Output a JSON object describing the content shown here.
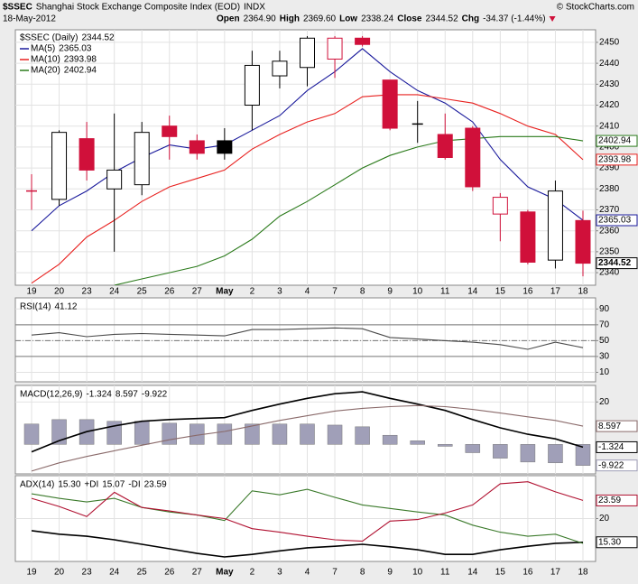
{
  "chart_data": [
    {
      "type": "candlestick",
      "symbol": "$SSEC",
      "title": "Shanghai Stock Exchange Composite Index (EOD)",
      "exchange": "INDX",
      "date": "18-May-2012",
      "credit": "© StockCharts.com",
      "quote": [
        {
          "label": "Open",
          "value": "2364.90"
        },
        {
          "label": "High",
          "value": "2369.60"
        },
        {
          "label": "Low",
          "value": "2338.24"
        },
        {
          "label": "Close",
          "value": "2344.52"
        },
        {
          "label": "Chg",
          "value": "-34.37 (-1.44%)"
        }
      ],
      "legend_name": "$SSEC (Daily)",
      "categories": [
        "19",
        "20",
        "23",
        "24",
        "25",
        "26",
        "27",
        "May",
        "2",
        "3",
        "4",
        "7",
        "8",
        "9",
        "10",
        "11",
        "14",
        "15",
        "16",
        "17",
        "18"
      ],
      "open": [
        2379,
        2375,
        2404,
        2380,
        2382,
        2410,
        2403,
        2403,
        2420,
        2434,
        2438,
        2442,
        2452,
        2432,
        2411,
        2406,
        2409,
        2368,
        2369,
        2346,
        2364.9
      ],
      "high": [
        2387,
        2408,
        2412,
        2416,
        2412,
        2415,
        2406,
        2409,
        2446,
        2446,
        2453,
        2453,
        2453,
        2432,
        2422,
        2416,
        2410,
        2378,
        2370,
        2384,
        2369.6
      ],
      "low": [
        2370,
        2372,
        2384,
        2350,
        2377,
        2394,
        2394,
        2394,
        2408,
        2428,
        2429,
        2433,
        2448,
        2408,
        2402,
        2394,
        2379,
        2355,
        2344,
        2342,
        2338.24
      ],
      "close": [
        2379,
        2407,
        2389,
        2389,
        2407,
        2405,
        2397,
        2397,
        2439,
        2441,
        2452,
        2452,
        2449,
        2409,
        2411,
        2395,
        2381,
        2376,
        2345,
        2379,
        2344.52
      ],
      "colors": [
        "#d0103a",
        "#000000",
        "#d0103a",
        "#000000",
        "#000000",
        "#d0103a",
        "#d0103a",
        "#000000",
        "#000000",
        "#000000",
        "#000000",
        "#d0103a",
        "#d0103a",
        "#d0103a",
        "#000000",
        "#d0103a",
        "#d0103a",
        "#d0103a",
        "#d0103a",
        "#000000",
        "#d0103a"
      ],
      "ylim": [
        2334,
        2456
      ],
      "yticks": [
        2340,
        2350,
        2360,
        2370,
        2380,
        2390,
        2400,
        2410,
        2420,
        2430,
        2440,
        2450
      ],
      "grid": true,
      "series": [
        {
          "name": "MA(5)",
          "type": "line",
          "color": "#1a1a9c",
          "end_label": true,
          "values": [
            2360,
            2372,
            2379,
            2388,
            2395,
            2401,
            2399,
            2401,
            2408,
            2415,
            2427,
            2436,
            2447,
            2436,
            2427,
            2421,
            2412,
            2394,
            2381,
            2375,
            2365.03
          ]
        },
        {
          "name": "MA(10)",
          "type": "line",
          "color": "#e8211f",
          "end_label": true,
          "values": [
            2335,
            2344,
            2357,
            2365,
            2374,
            2381,
            2385,
            2389,
            2399,
            2406,
            2412,
            2416,
            2424,
            2425,
            2425,
            2423,
            2421,
            2416,
            2410,
            2406,
            2393.98
          ]
        },
        {
          "name": "MA(20)",
          "type": "line",
          "color": "#2a7a1a",
          "end_label": true,
          "values": [
            null,
            null,
            null,
            2334,
            2337,
            2340,
            2343,
            2348,
            2356,
            2367,
            2374,
            2382,
            2390,
            2396,
            2400,
            2403,
            2404,
            2405,
            2405,
            2405,
            2402.94
          ]
        }
      ]
    },
    {
      "type": "line",
      "ylim": [
        -2,
        104
      ],
      "yticks": [
        10,
        30,
        50,
        70,
        90
      ],
      "ref_lines": [
        30,
        50,
        70
      ],
      "grid": true,
      "series": [
        {
          "name": "RSI(14)",
          "type": "line",
          "color": "#4a4a4a",
          "values": [
            57,
            60,
            55,
            58,
            59,
            58,
            57,
            56,
            64,
            64,
            65,
            66,
            65,
            54,
            52,
            50,
            48,
            45,
            39,
            48,
            41.12
          ]
        }
      ]
    },
    {
      "type": "combo",
      "ylim": [
        -13.9,
        27.8
      ],
      "yticks": [
        20
      ],
      "grid": true,
      "series": [
        {
          "name": "MACD(12,26,9)",
          "type": "line",
          "color": "#000000",
          "end_label": true,
          "values": [
            -3.5,
            1.7,
            6,
            8.7,
            10.9,
            11.7,
            12.2,
            12.6,
            16,
            19,
            21.7,
            23.9,
            24.8,
            21.7,
            19,
            16,
            11.7,
            7.8,
            4.8,
            2.6,
            -1.324
          ]
        },
        {
          "type": "line",
          "color": "#8a6a6a",
          "end_label": true,
          "values": [
            -12.6,
            -8.7,
            -5.7,
            -3,
            -0.4,
            2.2,
            4.3,
            6.1,
            8.7,
            11.3,
            13.5,
            15.7,
            17,
            17.8,
            18.3,
            17.8,
            16.5,
            14.8,
            13,
            11.3,
            8.597
          ]
        },
        {
          "type": "bar",
          "color": "#a09fb8",
          "end_label": true,
          "values": [
            9.6,
            11.7,
            11.7,
            10.9,
            10.9,
            10,
            9.6,
            9.6,
            9.6,
            9.6,
            9.6,
            9.1,
            8.3,
            4.3,
            1.7,
            -0.9,
            -3.9,
            -6.5,
            -8.3,
            -8.7,
            -9.922
          ]
        }
      ]
    },
    {
      "type": "line",
      "ylim": [
        11.5,
        28.5
      ],
      "yticks": [
        20
      ],
      "grid": true,
      "series": [
        {
          "name": "ADX(14)",
          "type": "line",
          "color": "#000000",
          "end_label": true,
          "values": [
            17.6,
            16.9,
            16.5,
            15.8,
            14.9,
            14,
            13.1,
            12.4,
            12.9,
            13.6,
            14.2,
            14.5,
            14.9,
            14.4,
            13.8,
            12.9,
            12.9,
            13.8,
            14.5,
            15.1,
            15.3
          ],
          "value_labels": [
            null,
            null,
            null,
            null,
            null,
            null,
            null,
            null,
            null,
            null,
            null,
            null,
            null,
            null,
            null,
            null,
            null,
            null,
            null,
            null,
            "15.30"
          ]
        },
        {
          "name": "+DI",
          "type": "line",
          "color": "#3b7a2b",
          "values": [
            24.9,
            24,
            23.3,
            24,
            22.2,
            21.3,
            20.7,
            19.6,
            25.5,
            24.7,
            25.8,
            24.2,
            22.7,
            22,
            21.3,
            20.7,
            18.7,
            17.3,
            16.5,
            16.9,
            15.07
          ]
        },
        {
          "name": "-DI",
          "type": "line",
          "color": "#b01030",
          "end_label": true,
          "values": [
            24,
            22.4,
            20.4,
            25.2,
            22.2,
            21.5,
            20.7,
            20,
            18,
            17.3,
            16.5,
            15.8,
            15.5,
            19.5,
            19.8,
            21.1,
            22.7,
            26.9,
            27.3,
            25.3,
            23.59
          ]
        }
      ]
    }
  ]
}
